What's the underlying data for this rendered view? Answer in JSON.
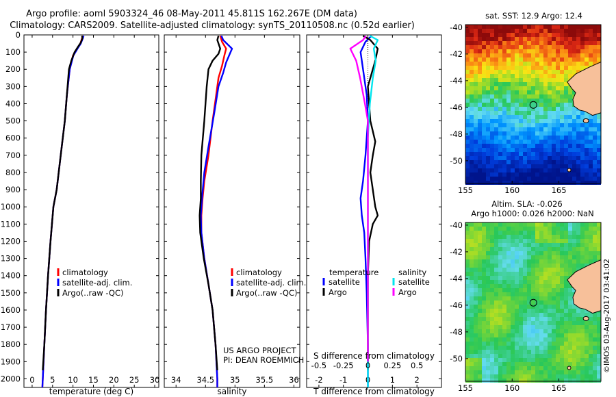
{
  "header": {
    "title_line1": "Argo profile: aoml 5903324_46 08-May-2011 45.811S 162.267E (DM data)",
    "title_line2": "Climatology: CARS2009. Satellite-adjusted climatology: synTS_20110508.nc (0.52d earlier)"
  },
  "colors": {
    "climatology": "#ff0000",
    "satellite": "#0000ff",
    "argo": "#000000",
    "sal_satellite": "#00e5ee",
    "sal_argo": "#ff00ff",
    "land": "#f7c09a"
  },
  "chart_data": [
    {
      "type": "line",
      "id": "temperature-profile",
      "xlabel": "temperature (deg C)",
      "xlim": [
        -2,
        31
      ],
      "ylim": [
        0,
        2050
      ],
      "y_reversed": true,
      "x_ticks": [
        0,
        5,
        10,
        15,
        20,
        25,
        30
      ],
      "y_ticks": [
        0,
        100,
        200,
        300,
        400,
        500,
        600,
        700,
        800,
        900,
        1000,
        1100,
        1200,
        1300,
        1400,
        1500,
        1600,
        1700,
        1800,
        1900,
        2000
      ],
      "legend": [
        "climatology",
        "satellite-adj. clim.",
        "Argo(..raw -QC)"
      ],
      "series": [
        {
          "name": "climatology",
          "color": "#ff0000",
          "points": [
            [
              12.4,
              5
            ],
            [
              12.2,
              20
            ],
            [
              11.8,
              50
            ],
            [
              11.0,
              80
            ],
            [
              10.0,
              120
            ],
            [
              9.2,
              200
            ],
            [
              8.5,
              350
            ],
            [
              8.0,
              500
            ],
            [
              7.0,
              700
            ],
            [
              6.0,
              900
            ],
            [
              5.2,
              1000
            ],
            [
              4.5,
              1200
            ],
            [
              3.9,
              1400
            ],
            [
              3.4,
              1600
            ],
            [
              3.0,
              1800
            ],
            [
              2.6,
              2000
            ],
            [
              2.5,
              2050
            ]
          ]
        },
        {
          "name": "satellite-adj. clim.",
          "color": "#0000ff",
          "points": [
            [
              12.6,
              5
            ],
            [
              12.4,
              20
            ],
            [
              11.9,
              50
            ],
            [
              11.1,
              80
            ],
            [
              10.1,
              120
            ],
            [
              9.2,
              200
            ],
            [
              8.5,
              350
            ],
            [
              8.0,
              500
            ],
            [
              7.0,
              700
            ],
            [
              6.0,
              900
            ],
            [
              5.2,
              1000
            ],
            [
              4.5,
              1200
            ],
            [
              3.9,
              1400
            ],
            [
              3.4,
              1600
            ],
            [
              3.0,
              1800
            ],
            [
              2.6,
              2000
            ],
            [
              2.5,
              2050
            ]
          ]
        },
        {
          "name": "Argo(..raw -QC)",
          "color": "#000000",
          "points": [
            [
              12.2,
              5
            ],
            [
              12.3,
              20
            ],
            [
              11.9,
              45
            ],
            [
              11.2,
              70
            ],
            [
              10.4,
              100
            ],
            [
              9.6,
              150
            ],
            [
              9.0,
              200
            ],
            [
              8.5,
              350
            ],
            [
              8.0,
              500
            ],
            [
              7.0,
              700
            ],
            [
              6.0,
              900
            ],
            [
              5.2,
              1000
            ],
            [
              4.5,
              1200
            ],
            [
              3.9,
              1400
            ],
            [
              3.4,
              1600
            ],
            [
              3.0,
              1800
            ],
            [
              2.6,
              1950
            ]
          ]
        }
      ]
    },
    {
      "type": "line",
      "id": "salinity-profile",
      "xlabel": "salinity",
      "xlim": [
        33.8,
        36.1
      ],
      "ylim": [
        0,
        2050
      ],
      "y_reversed": true,
      "x_ticks": [
        34,
        34.5,
        35,
        35.5,
        36
      ],
      "legend": [
        "climatology",
        "satellite-adj. clim.",
        "Argo(..raw -QC)"
      ],
      "annotation": [
        "US ARGO PROJECT",
        "PI: DEAN ROEMMICH"
      ],
      "series": [
        {
          "name": "climatology",
          "color": "#ff0000",
          "points": [
            [
              34.75,
              5
            ],
            [
              34.78,
              40
            ],
            [
              34.85,
              80
            ],
            [
              34.82,
              120
            ],
            [
              34.78,
              180
            ],
            [
              34.72,
              250
            ],
            [
              34.68,
              350
            ],
            [
              34.62,
              500
            ],
            [
              34.55,
              700
            ],
            [
              34.48,
              850
            ],
            [
              34.45,
              950
            ],
            [
              34.43,
              1050
            ],
            [
              34.43,
              1150
            ],
            [
              34.48,
              1300
            ],
            [
              34.55,
              1450
            ],
            [
              34.62,
              1600
            ],
            [
              34.67,
              1800
            ],
            [
              34.7,
              2000
            ],
            [
              34.7,
              2050
            ]
          ]
        },
        {
          "name": "satellite-adj. clim.",
          "color": "#0000ff",
          "points": [
            [
              34.77,
              5
            ],
            [
              34.8,
              30
            ],
            [
              34.95,
              80
            ],
            [
              34.9,
              120
            ],
            [
              34.85,
              160
            ],
            [
              34.8,
              220
            ],
            [
              34.72,
              300
            ],
            [
              34.65,
              450
            ],
            [
              34.55,
              650
            ],
            [
              34.48,
              800
            ],
            [
              34.44,
              950
            ],
            [
              34.42,
              1050
            ],
            [
              34.43,
              1150
            ],
            [
              34.48,
              1300
            ],
            [
              34.55,
              1450
            ],
            [
              34.62,
              1600
            ],
            [
              34.67,
              1800
            ],
            [
              34.7,
              2000
            ],
            [
              34.7,
              2050
            ]
          ]
        },
        {
          "name": "Argo(..raw -QC)",
          "color": "#000000",
          "points": [
            [
              34.72,
              5
            ],
            [
              34.7,
              30
            ],
            [
              34.75,
              80
            ],
            [
              34.72,
              110
            ],
            [
              34.62,
              150
            ],
            [
              34.55,
              200
            ],
            [
              34.52,
              300
            ],
            [
              34.48,
              500
            ],
            [
              34.43,
              700
            ],
            [
              34.42,
              850
            ],
            [
              34.42,
              950
            ],
            [
              34.4,
              1050
            ],
            [
              34.41,
              1150
            ],
            [
              34.47,
              1300
            ],
            [
              34.55,
              1450
            ],
            [
              34.62,
              1600
            ],
            [
              34.67,
              1800
            ],
            [
              34.7,
              1950
            ]
          ]
        }
      ]
    },
    {
      "type": "line",
      "id": "difference-profile",
      "xlabel": "T difference from climatology",
      "xlabel_top": "S difference from climatology",
      "xlim": [
        -2.5,
        3
      ],
      "xlim_top": [
        -0.625,
        0.75
      ],
      "ylim": [
        0,
        2050
      ],
      "y_reversed": true,
      "x_ticks": [
        -2,
        -1,
        0,
        1,
        2
      ],
      "x_ticks_top": [
        -0.5,
        -0.25,
        0,
        0.25,
        0.5
      ],
      "legend": {
        "temperature": [
          "satellite",
          "Argo"
        ],
        "salinity": [
          "satellite",
          "Argo"
        ],
        "temperature_label": "temperature",
        "salinity_label": "salinity"
      },
      "series": [
        {
          "name": "temperature satellite",
          "color": "#0000ff",
          "axis": "T",
          "points": [
            [
              0.15,
              5
            ],
            [
              -0.1,
              40
            ],
            [
              -0.3,
              100
            ],
            [
              -0.2,
              200
            ],
            [
              -0.05,
              350
            ],
            [
              0.0,
              500
            ],
            [
              -0.1,
              700
            ],
            [
              -0.2,
              850
            ],
            [
              -0.3,
              950
            ],
            [
              -0.25,
              1050
            ],
            [
              -0.15,
              1150
            ],
            [
              -0.1,
              1300
            ],
            [
              -0.05,
              1500
            ],
            [
              0.0,
              1800
            ],
            [
              0.0,
              2050
            ]
          ]
        },
        {
          "name": "temperature Argo",
          "color": "#000000",
          "axis": "T",
          "points": [
            [
              -0.2,
              5
            ],
            [
              0.1,
              30
            ],
            [
              0.4,
              80
            ],
            [
              0.3,
              150
            ],
            [
              0.2,
              200
            ],
            [
              0.0,
              300
            ],
            [
              0.05,
              400
            ],
            [
              0.1,
              500
            ],
            [
              0.2,
              560
            ],
            [
              0.3,
              620
            ],
            [
              0.2,
              700
            ],
            [
              0.1,
              800
            ],
            [
              0.2,
              900
            ],
            [
              0.3,
              1000
            ],
            [
              0.4,
              1050
            ],
            [
              0.2,
              1100
            ],
            [
              0.05,
              1200
            ],
            [
              0.0,
              1400
            ],
            [
              0.0,
              1950
            ]
          ]
        },
        {
          "name": "salinity satellite",
          "color": "#00e5ee",
          "axis": "S",
          "points": [
            [
              0.02,
              5
            ],
            [
              0.1,
              30
            ],
            [
              0.06,
              80
            ],
            [
              0.08,
              150
            ],
            [
              0.05,
              250
            ],
            [
              0.02,
              400
            ],
            [
              0.0,
              600
            ],
            [
              0.0,
              2050
            ]
          ]
        },
        {
          "name": "salinity Argo",
          "color": "#ff00ff",
          "axis": "S",
          "points": [
            [
              -0.02,
              5
            ],
            [
              -0.05,
              30
            ],
            [
              -0.18,
              80
            ],
            [
              -0.12,
              150
            ],
            [
              -0.08,
              250
            ],
            [
              -0.03,
              400
            ],
            [
              0.0,
              500
            ],
            [
              0.0,
              1900
            ]
          ]
        }
      ]
    },
    {
      "type": "heatmap",
      "id": "sst-map",
      "title": "sat. SST: 12.9  Argo: 12.4",
      "xlim": [
        155,
        169.5
      ],
      "ylim": [
        -51.7,
        -39.8
      ],
      "x_ticks": [
        155,
        160,
        165
      ],
      "y_ticks": [
        -40,
        -42,
        -44,
        -46,
        -48,
        -50
      ],
      "marker": {
        "lon": 162.267,
        "lat": -45.811
      }
    },
    {
      "type": "heatmap",
      "id": "sla-map",
      "title_line1": "Altim. SLA: -0.026",
      "title_line2": "Argo h1000: 0.026 h2000: NaN",
      "xlim": [
        155,
        169.5
      ],
      "ylim": [
        -51.7,
        -39.8
      ],
      "x_ticks": [
        155,
        160,
        165
      ],
      "y_ticks": [
        -40,
        -42,
        -44,
        -46,
        -48,
        -50
      ],
      "marker": {
        "lon": 162.267,
        "lat": -45.811
      }
    }
  ],
  "stamp": "©IMOS 03-Aug-2017 03:41:02"
}
